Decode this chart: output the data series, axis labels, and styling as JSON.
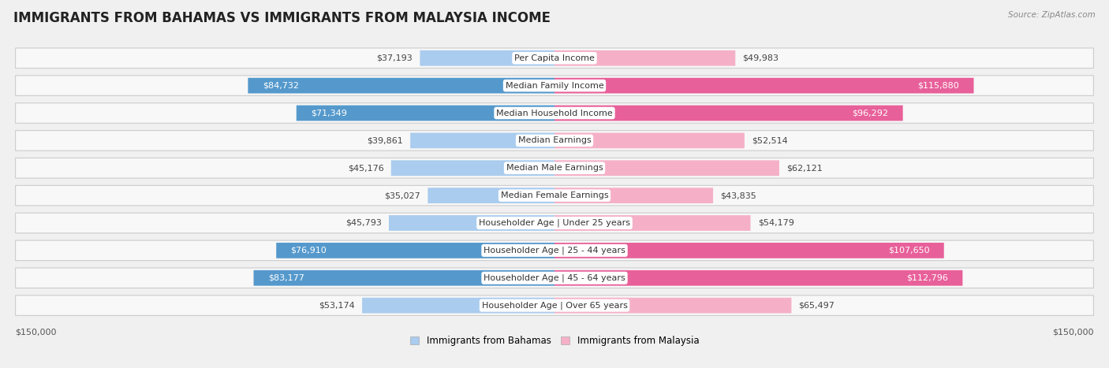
{
  "title": "IMMIGRANTS FROM BAHAMAS VS IMMIGRANTS FROM MALAYSIA INCOME",
  "source": "Source: ZipAtlas.com",
  "categories": [
    "Per Capita Income",
    "Median Family Income",
    "Median Household Income",
    "Median Earnings",
    "Median Male Earnings",
    "Median Female Earnings",
    "Householder Age | Under 25 years",
    "Householder Age | 25 - 44 years",
    "Householder Age | 45 - 64 years",
    "Householder Age | Over 65 years"
  ],
  "bahamas_values": [
    37193,
    84732,
    71349,
    39861,
    45176,
    35027,
    45793,
    76910,
    83177,
    53174
  ],
  "malaysia_values": [
    49983,
    115880,
    96292,
    52514,
    62121,
    43835,
    54179,
    107650,
    112796,
    65497
  ],
  "bahamas_color_light": "#aaccee",
  "bahamas_color_dark": "#5599cc",
  "malaysia_color_light": "#f5b0c8",
  "malaysia_color_dark": "#e8609a",
  "max_val": 150000,
  "xlabel_left": "$150,000",
  "xlabel_right": "$150,000",
  "legend_bahamas": "Immigrants from Bahamas",
  "legend_malaysia": "Immigrants from Malaysia",
  "background_color": "#f0f0f0",
  "row_bg_color": "#f8f8f8",
  "title_fontsize": 12,
  "label_fontsize": 8,
  "value_fontsize": 8,
  "dark_bah_threshold": 60000,
  "dark_mal_threshold": 80000
}
